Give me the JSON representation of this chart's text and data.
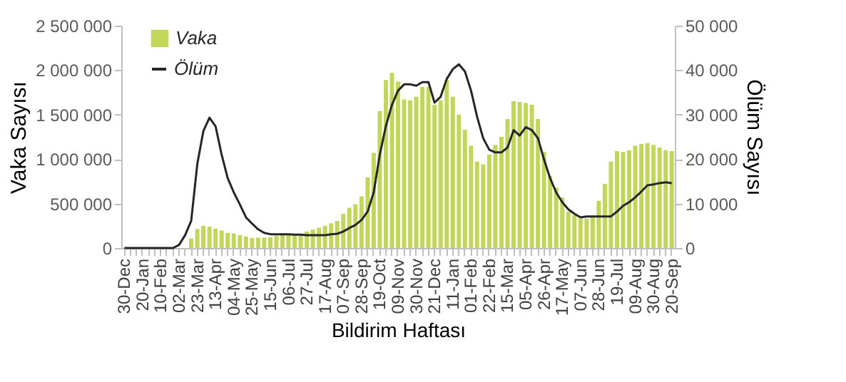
{
  "chart_data": {
    "type": "bar",
    "categories": [
      "30-Dec",
      null,
      null,
      "20-Jan",
      null,
      null,
      "10-Feb",
      null,
      null,
      "02-Mar",
      null,
      null,
      "23-Mar",
      null,
      null,
      "13-Apr",
      null,
      null,
      "04-May",
      null,
      null,
      "25-May",
      null,
      null,
      "15-Jun",
      null,
      null,
      "06-Jul",
      null,
      null,
      "27-Jul",
      null,
      null,
      "17-Aug",
      null,
      null,
      "07-Sep",
      null,
      null,
      "28-Sep",
      null,
      null,
      "19-Oct",
      null,
      null,
      "09-Nov",
      null,
      null,
      "30-Nov",
      null,
      null,
      "21-Dec",
      null,
      null,
      "11-Jan",
      null,
      null,
      "01-Feb",
      null,
      null,
      "22-Feb",
      null,
      null,
      "15-Mar",
      null,
      null,
      "05-Apr",
      null,
      null,
      "26-Apr",
      null,
      null,
      "17-May",
      null,
      null,
      "07-Jun",
      null,
      null,
      "28-Jun",
      null,
      null,
      "19-Jul",
      null,
      null,
      "09-Aug",
      null,
      null,
      "30-Aug",
      null,
      null,
      "20-Sep"
    ],
    "series": [
      {
        "name": "Vaka",
        "color": "#c4d65a",
        "values": [
          0,
          0,
          0,
          0,
          0,
          0,
          0,
          0,
          0,
          0,
          0,
          107000,
          213000,
          250000,
          240000,
          218000,
          197000,
          170000,
          165000,
          144000,
          128000,
          112000,
          117000,
          117000,
          122000,
          138000,
          144000,
          144000,
          144000,
          154000,
          186000,
          208000,
          229000,
          250000,
          277000,
          304000,
          384000,
          453000,
          490000,
          581000,
          794000,
          1070000,
          1540000,
          1890000,
          1970000,
          1870000,
          1670000,
          1660000,
          1700000,
          1810000,
          1810000,
          1610000,
          1660000,
          1890000,
          1700000,
          1500000,
          1330000,
          1150000,
          970000,
          940000,
          1050000,
          1160000,
          1250000,
          1450000,
          1650000,
          1640000,
          1630000,
          1610000,
          1450000,
          1080000,
          810000,
          680000,
          570000,
          410000,
          370000,
          330000,
          330000,
          360000,
          530000,
          720000,
          970000,
          1090000,
          1080000,
          1100000,
          1150000,
          1170000,
          1180000,
          1160000,
          1130000,
          1100000,
          1090000
        ]
      },
      {
        "name": "Ölüm",
        "type": "line",
        "axis": "y2",
        "color": "#262626",
        "values": [
          0,
          0,
          0,
          0,
          0,
          0,
          0,
          0,
          0,
          700,
          2900,
          6100,
          18900,
          26300,
          29300,
          27400,
          21000,
          15700,
          12500,
          9800,
          6900,
          5500,
          4200,
          3400,
          3100,
          3100,
          3100,
          3100,
          3000,
          3000,
          2900,
          2900,
          2900,
          2900,
          3100,
          3200,
          3700,
          4500,
          5200,
          6300,
          8200,
          12500,
          21000,
          27400,
          32200,
          35400,
          36800,
          36800,
          36500,
          37300,
          37300,
          32700,
          34000,
          38000,
          40200,
          41300,
          39700,
          35400,
          29500,
          24700,
          22100,
          21500,
          21500,
          22600,
          26500,
          25300,
          27200,
          26500,
          24700,
          19900,
          15700,
          12500,
          10300,
          8700,
          7700,
          6900,
          7100,
          7100,
          7100,
          7100,
          7100,
          8200,
          9500,
          10300,
          11400,
          12700,
          14100,
          14300,
          14600,
          14800,
          14600
        ]
      }
    ],
    "xlabel": "Bildirim Haftası",
    "ylabel": "Vaka Sayısı",
    "y2label": "Ölüm Sayısı",
    "ylim": [
      0,
      2500000
    ],
    "yticks": [
      0,
      {
        "value": 500000,
        "label": "500 000"
      },
      {
        "value": 1000000,
        "label": "1 000 000"
      },
      {
        "value": 1500000,
        "label": "1 500 000"
      },
      {
        "value": 2000000,
        "label": "2 000 000"
      },
      {
        "value": 2500000,
        "label": "2 500 000"
      }
    ],
    "y2lim": [
      0,
      50000
    ],
    "y2ticks": [
      0,
      {
        "value": 10000,
        "label": "10 000"
      },
      {
        "value": 20000,
        "label": "20 000"
      },
      {
        "value": 30000,
        "label": "30 000"
      },
      {
        "value": 40000,
        "label": "40 000"
      },
      {
        "value": 50000,
        "label": "50 000"
      }
    ],
    "legend": "top left",
    "grid": false
  }
}
